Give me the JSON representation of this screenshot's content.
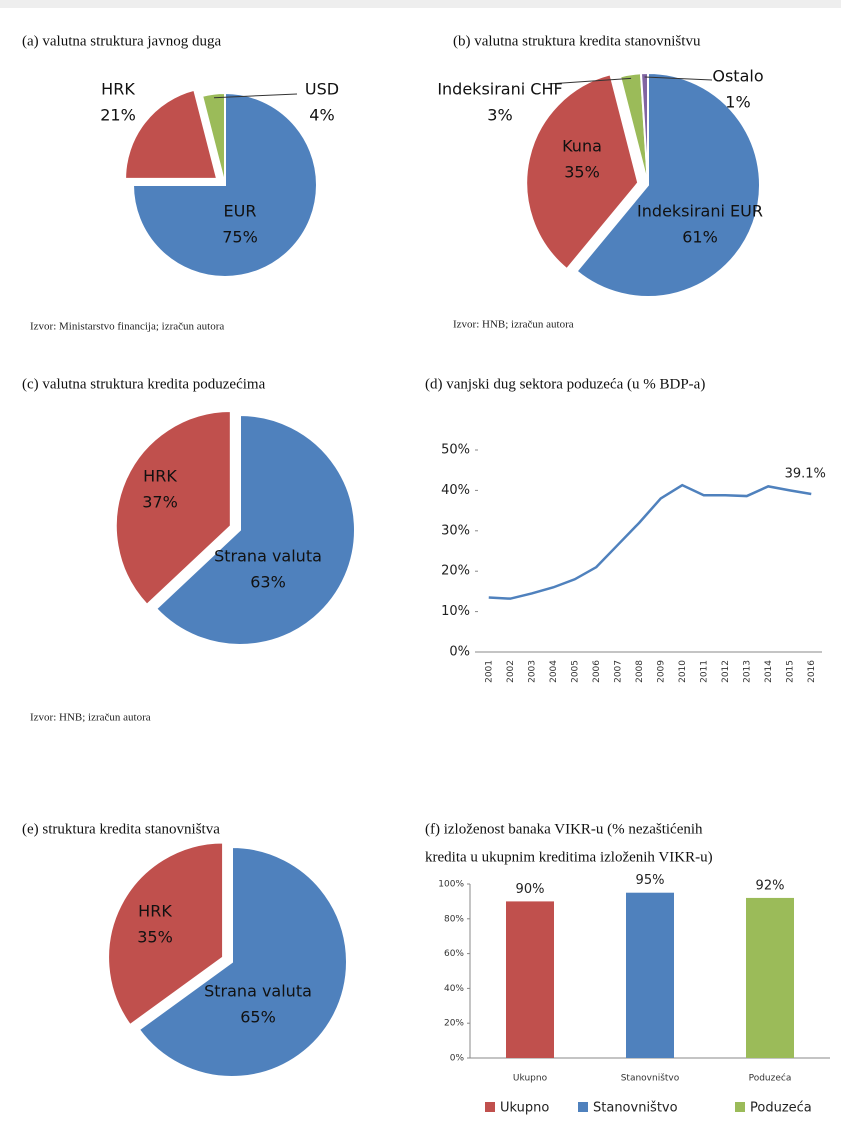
{
  "chart_data": [
    {
      "type": "pie",
      "title": "(a) valutna struktura javnog duga",
      "categories": [
        "EUR",
        "HRK",
        "USD"
      ],
      "values": [
        75,
        21,
        4
      ],
      "value_labels": [
        "75%",
        "21%",
        "4%"
      ],
      "colors": [
        "#4f81bd",
        "#c0504d",
        "#9bbb59"
      ],
      "source": "Izvor: Ministarstvo financija; izračun autora"
    },
    {
      "type": "pie",
      "title": "(b) valutna struktura kredita stanovništvu",
      "categories": [
        "Indeksirani EUR",
        "Kuna",
        "Indeksirani CHF",
        "Ostalo"
      ],
      "values": [
        61,
        35,
        3,
        1
      ],
      "value_labels": [
        "61%",
        "35%",
        "3%",
        "1%"
      ],
      "colors": [
        "#4f81bd",
        "#c0504d",
        "#9bbb59",
        "#8064a2"
      ],
      "source": "Izvor: HNB; izračun autora"
    },
    {
      "type": "pie",
      "title": "(c) valutna struktura kredita poduzećima",
      "categories": [
        "Strana valuta",
        "HRK"
      ],
      "values": [
        63,
        37
      ],
      "value_labels": [
        "63%",
        "37%"
      ],
      "colors": [
        "#4f81bd",
        "#c0504d"
      ],
      "source": "Izvor: HNB; izračun autora"
    },
    {
      "type": "line",
      "title": "(d) vanjski dug sektora poduzeća (u % BDP-a)",
      "categories": [
        "2001",
        "2002",
        "2003",
        "2004",
        "2005",
        "2006",
        "2007",
        "2008",
        "2009",
        "2010",
        "2011",
        "2012",
        "2013",
        "2014",
        "2015",
        "2016"
      ],
      "values": [
        13.5,
        13.2,
        14.5,
        16,
        18,
        21,
        26.5,
        32,
        38,
        41.3,
        38.8,
        38.8,
        38.6,
        41,
        40,
        39.1
      ],
      "value_labels": [
        null,
        null,
        null,
        null,
        null,
        null,
        null,
        null,
        null,
        null,
        null,
        null,
        null,
        null,
        null,
        "39.1%"
      ],
      "color": "#4f81bd",
      "ylim": [
        0,
        50
      ],
      "yticks": [
        {
          "value": 0,
          "label": "0%"
        },
        {
          "value": 10,
          "label": "10%"
        },
        {
          "value": 20,
          "label": "20%"
        },
        {
          "value": 30,
          "label": "30%"
        },
        {
          "value": 40,
          "label": "40%"
        },
        {
          "value": 50,
          "label": "50%"
        }
      ]
    },
    {
      "type": "pie",
      "title": "(e) struktura kredita stanovništva",
      "categories": [
        "Strana valuta",
        "HRK"
      ],
      "values": [
        65,
        35
      ],
      "value_labels": [
        "65%",
        "35%"
      ],
      "colors": [
        "#4f81bd",
        "#c0504d"
      ]
    },
    {
      "type": "bar",
      "title": [
        "(f) izloženost banaka VIKR-u (% nezaštićenih",
        "kredita u ukupnim kreditima izloženih VIKR-u)"
      ],
      "categories": [
        "Ukupno",
        "Stanovništvo",
        "Poduzeća"
      ],
      "values": [
        90,
        95,
        92
      ],
      "value_labels": [
        "90%",
        "95%",
        "92%"
      ],
      "colors": [
        "#c0504d",
        "#4f81bd",
        "#9bbb59"
      ],
      "ylim": [
        0,
        100
      ],
      "yticks": [
        {
          "value": 0,
          "label": "0%"
        },
        {
          "value": 20,
          "label": "20%"
        },
        {
          "value": 40,
          "label": "40%"
        },
        {
          "value": 60,
          "label": "60%"
        },
        {
          "value": 80,
          "label": "80%"
        },
        {
          "value": 100,
          "label": "100%"
        }
      ],
      "legend": "bottom"
    }
  ]
}
